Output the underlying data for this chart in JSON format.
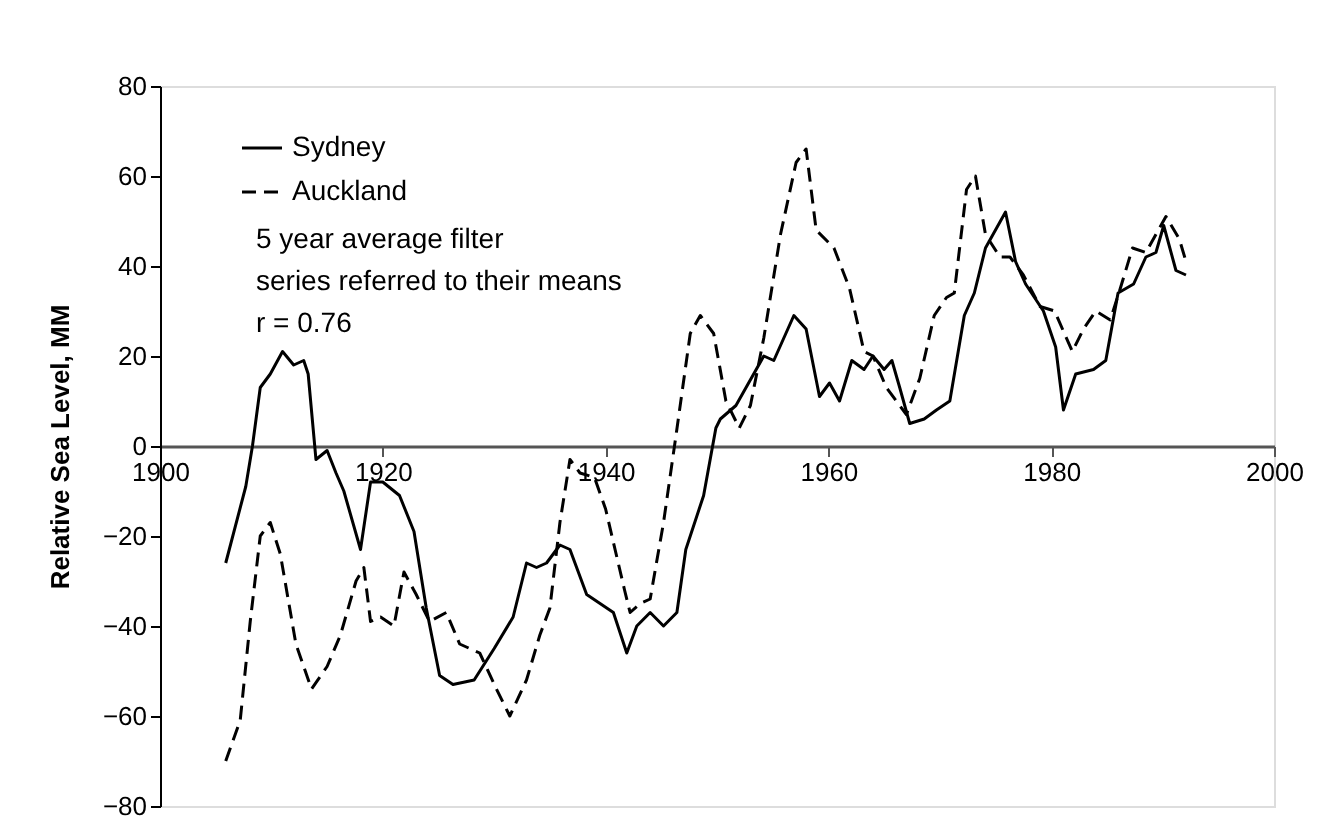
{
  "chart_data": {
    "type": "line",
    "ylabel": "Relative Sea Level, MM",
    "xlim": [
      1900,
      2000
    ],
    "xticks": [
      1900,
      1920,
      1940,
      1960,
      1980,
      2000
    ],
    "ylim": [
      -80,
      80
    ],
    "yticks": [
      -80,
      -60,
      -40,
      -20,
      0,
      20,
      40,
      60,
      80
    ],
    "grid": false,
    "legend": "top left",
    "marker": "none",
    "annotations": [
      "5 year average filter",
      "series referred to their means",
      "r = 0.76"
    ],
    "series": [
      {
        "name": "Sydney",
        "color": "#000000",
        "line_style": "solid",
        "x": [
          1905.9,
          1907.7,
          1908.3,
          1909,
          1909.9,
          1911,
          1912,
          1912.9,
          1913.3,
          1914,
          1915,
          1915.8,
          1916.5,
          1918,
          1918.9,
          1920,
          1921.5,
          1922.8,
          1923.9,
          1925.1,
          1926.3,
          1928.2,
          1930,
          1931.7,
          1932.9,
          1933.8,
          1934.7,
          1935.9,
          1936.8,
          1938.3,
          1939.5,
          1940.7,
          1941.9,
          1942.8,
          1944,
          1945.2,
          1946.4,
          1947.2,
          1948.8,
          1949.9,
          1950.3,
          1951.7,
          1954.2,
          1955.1,
          1956.9,
          1958,
          1959.2,
          1960.1,
          1961,
          1962.1,
          1963.2,
          1964,
          1965,
          1965.7,
          1966.4,
          1967.3,
          1968.6,
          1969.7,
          1970.9,
          1972.2,
          1973.1,
          1974.1,
          1975.9,
          1976.8,
          1977.7,
          1979.3,
          1980.4,
          1981.1,
          1982.2,
          1983.8,
          1984.9,
          1986,
          1987.4,
          1988.5,
          1989.4,
          1990.1,
          1991.2,
          1992.1
        ],
        "values": [
          -26,
          -9,
          0,
          13,
          16,
          21,
          18,
          19,
          16,
          -3,
          -1,
          -6,
          -10,
          -23,
          -8,
          -8,
          -11,
          -19,
          -36,
          -51,
          -53,
          -52,
          -45,
          -38,
          -26,
          -27,
          -26,
          -22,
          -23,
          -33,
          -35,
          -37,
          -46,
          -40,
          -37,
          -40,
          -37,
          -23,
          -11,
          4,
          6,
          9,
          20,
          19,
          29,
          26,
          11,
          14,
          10,
          19,
          17,
          20,
          17,
          19,
          13,
          5,
          6,
          8,
          10,
          29,
          34,
          44,
          52,
          41,
          36,
          30,
          22,
          8,
          16,
          17,
          19,
          34,
          36,
          42,
          43,
          49,
          39,
          38
        ]
      },
      {
        "name": "Auckland",
        "color": "#000000",
        "line_style": "dashed",
        "x": [
          1905.9,
          1907.2,
          1908.1,
          1909,
          1909.9,
          1910.8,
          1912.2,
          1913.6,
          1915,
          1916.2,
          1917.6,
          1918.3,
          1918.9,
          1919.8,
          1921,
          1921.9,
          1923,
          1924.2,
          1925.7,
          1926.9,
          1928.7,
          1930.2,
          1931.4,
          1932.9,
          1934.1,
          1935,
          1935.9,
          1936.8,
          1937.7,
          1939,
          1940,
          1941.7,
          1942.2,
          1943.1,
          1944,
          1945.2,
          1946.3,
          1947.6,
          1948.5,
          1949.7,
          1950.8,
          1952,
          1953,
          1954.2,
          1955.7,
          1957.1,
          1958,
          1958.9,
          1960.5,
          1961.9,
          1963.2,
          1964,
          1965.2,
          1967,
          1968.2,
          1969.5,
          1970.6,
          1971.3,
          1972.4,
          1973.2,
          1974.1,
          1975.4,
          1976.3,
          1977.5,
          1979,
          1980.3,
          1981.9,
          1982.9,
          1984,
          1985.3,
          1986.2,
          1987.3,
          1988.5,
          1990.3,
          1991.5,
          1992.1
        ],
        "values": [
          -70,
          -61,
          -39,
          -20,
          -17,
          -24,
          -44,
          -54,
          -49,
          -42,
          -30,
          -27,
          -39,
          -38,
          -40,
          -28,
          -33,
          -39,
          -37,
          -44,
          -46,
          -54,
          -60,
          -52,
          -42,
          -36,
          -17,
          -3,
          -6,
          -7,
          -14,
          -32,
          -37,
          -35,
          -34,
          -17,
          2,
          25,
          29,
          25,
          10,
          4,
          9,
          24,
          47,
          63,
          66,
          48,
          44,
          35,
          21,
          20,
          13,
          7,
          15,
          29,
          33,
          34,
          57,
          60,
          47,
          42,
          42,
          38,
          31,
          30,
          21,
          26,
          30,
          28,
          35,
          44,
          43,
          51,
          46,
          41
        ]
      }
    ]
  }
}
